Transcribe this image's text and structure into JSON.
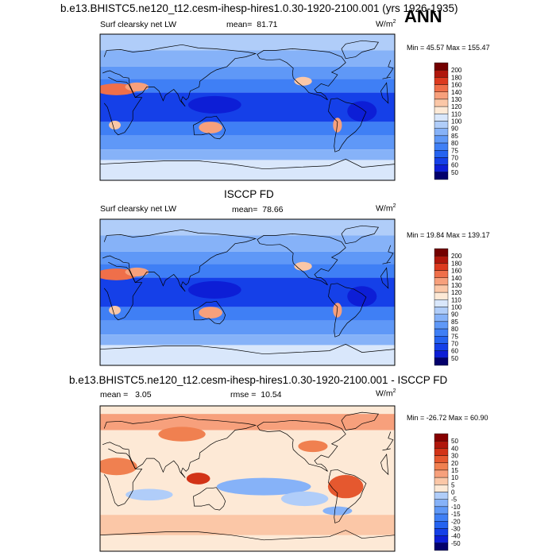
{
  "header": {
    "case_title": "b.e13.BHISTC5.ne120_t12.cesm-ihesp-hires1.0.30-1920-2100.001 (yrs 1926-1935)",
    "season": "ANN"
  },
  "chart_data": [
    {
      "type": "heatmap",
      "title": "",
      "variable": "Surf clearsky net LW",
      "stat_label": "mean=",
      "stat_value": "81.71",
      "units": "W/m",
      "units_exp": "2",
      "minmax": "Min =  45.57 Max = 155.47",
      "min": 45.57,
      "max": 155.47,
      "mean": 81.71,
      "colorbar_levels": [
        "50",
        "60",
        "70",
        "75",
        "80",
        "85",
        "90",
        "100",
        "110",
        "120",
        "130",
        "140",
        "160",
        "180",
        "200"
      ],
      "colorbar_colors": [
        "#03006b",
        "#0d1ed6",
        "#1540e8",
        "#2563f0",
        "#3f7ff5",
        "#5f98f7",
        "#86b2f8",
        "#b0cdf9",
        "#d9e7fb",
        "#fde9d6",
        "#fbc7a7",
        "#f7a07c",
        "#ef6f4a",
        "#dc3a1f",
        "#b0170c",
        "#730000"
      ]
    },
    {
      "type": "heatmap",
      "title": "ISCCP FD",
      "variable": "Surf clearsky net LW",
      "stat_label": "mean=",
      "stat_value": "78.66",
      "units": "W/m",
      "units_exp": "2",
      "minmax": "Min =  19.84 Max = 139.17",
      "min": 19.84,
      "max": 139.17,
      "mean": 78.66,
      "colorbar_levels": [
        "50",
        "60",
        "70",
        "75",
        "80",
        "85",
        "90",
        "100",
        "110",
        "120",
        "130",
        "140",
        "160",
        "180",
        "200"
      ],
      "colorbar_colors": [
        "#03006b",
        "#0d1ed6",
        "#1540e8",
        "#2563f0",
        "#3f7ff5",
        "#5f98f7",
        "#86b2f8",
        "#b0cdf9",
        "#d9e7fb",
        "#fde9d6",
        "#fbc7a7",
        "#f7a07c",
        "#ef6f4a",
        "#dc3a1f",
        "#b0170c",
        "#730000"
      ]
    },
    {
      "type": "heatmap",
      "title": "b.e13.BHISTC5.ne120_t12.cesm-ihesp-hires1.0.30-1920-2100.001 - ISCCP FD",
      "variable": "",
      "stat_label": "mean =",
      "stat_value": "3.05",
      "rmse_label": "rmse =",
      "rmse_value": "10.54",
      "units": "W/m",
      "units_exp": "2",
      "minmax": "Min = -26.72 Max =  60.90",
      "min": -26.72,
      "max": 60.9,
      "mean": 3.05,
      "rmse": 10.54,
      "colorbar_levels": [
        "-50",
        "-40",
        "-30",
        "-20",
        "-15",
        "-10",
        "-5",
        "0",
        "5",
        "10",
        "15",
        "20",
        "30",
        "40",
        "50"
      ],
      "colorbar_colors": [
        "#03006b",
        "#0d1ed6",
        "#1540e8",
        "#2563f0",
        "#3f7ff5",
        "#5f98f7",
        "#86b2f8",
        "#b0cdf9",
        "#fde9d6",
        "#fbc7a7",
        "#f7a07c",
        "#f08050",
        "#e5582f",
        "#d23317",
        "#b0170c",
        "#860000"
      ]
    }
  ]
}
